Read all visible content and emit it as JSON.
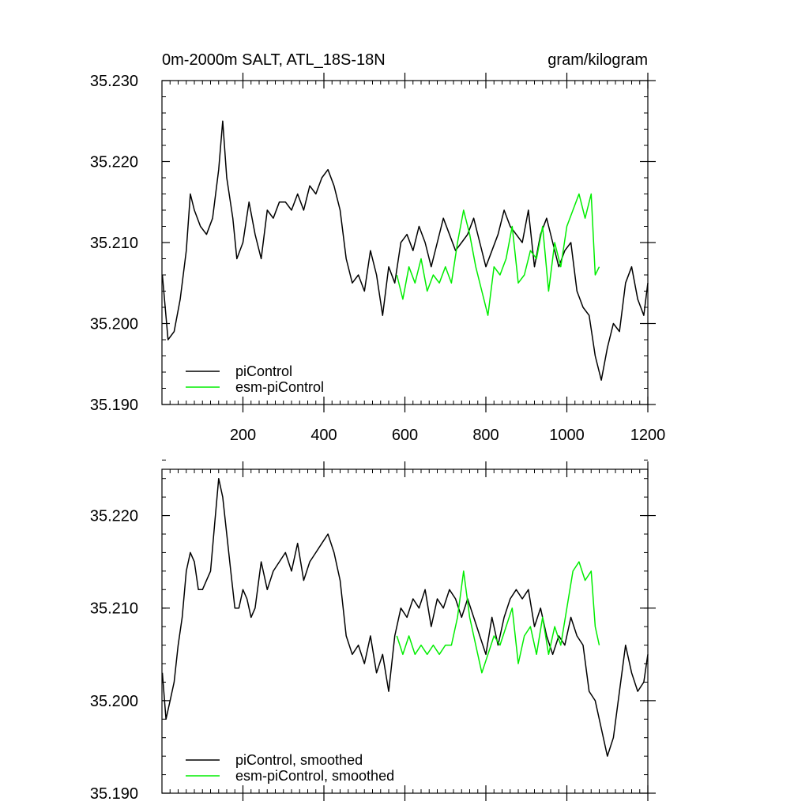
{
  "chart_data": [
    {
      "type": "line",
      "title_left": "0m-2000m SALT, ATL_18S-18N",
      "title_right": "gram/kilogram",
      "xlabel": "",
      "ylabel": "",
      "xlim": [
        0,
        1200
      ],
      "ylim": [
        35.19,
        35.23
      ],
      "x_ticks": [
        200,
        400,
        600,
        800,
        1000,
        1200
      ],
      "x_tick_labels": [
        "200",
        "400",
        "600",
        "800",
        "1000",
        "1200"
      ],
      "y_ticks": [
        35.19,
        35.2,
        35.21,
        35.22,
        35.23
      ],
      "y_tick_labels": [
        "35.190",
        "35.200",
        "35.210",
        "35.220",
        "35.230"
      ],
      "legend_position": "bottom-left",
      "series": [
        {
          "name": "piControl",
          "color": "#000000",
          "x": [
            1,
            15,
            30,
            45,
            60,
            70,
            80,
            95,
            110,
            125,
            140,
            150,
            160,
            175,
            185,
            200,
            215,
            230,
            245,
            260,
            275,
            290,
            305,
            320,
            335,
            350,
            365,
            380,
            395,
            410,
            425,
            440,
            455,
            470,
            485,
            500,
            515,
            530,
            545,
            560,
            575,
            590,
            605,
            620,
            635,
            650,
            665,
            680,
            695,
            710,
            725,
            740,
            755,
            770,
            785,
            800,
            815,
            830,
            845,
            860,
            875,
            890,
            905,
            920,
            935,
            950,
            965,
            980,
            995,
            1010,
            1025,
            1040,
            1055,
            1070,
            1085,
            1100,
            1115,
            1130,
            1145,
            1160,
            1175,
            1190,
            1200
          ],
          "y": [
            35.206,
            35.198,
            35.199,
            35.203,
            35.209,
            35.216,
            35.214,
            35.212,
            35.211,
            35.213,
            35.219,
            35.225,
            35.218,
            35.213,
            35.208,
            35.21,
            35.215,
            35.211,
            35.208,
            35.214,
            35.213,
            35.215,
            35.215,
            35.214,
            35.216,
            35.214,
            35.217,
            35.216,
            35.218,
            35.219,
            35.217,
            35.214,
            35.208,
            35.205,
            35.206,
            35.204,
            35.209,
            35.206,
            35.201,
            35.207,
            35.205,
            35.21,
            35.211,
            35.209,
            35.212,
            35.21,
            35.207,
            35.21,
            35.213,
            35.211,
            35.209,
            35.21,
            35.211,
            35.213,
            35.21,
            35.207,
            35.209,
            35.211,
            35.214,
            35.212,
            35.211,
            35.21,
            35.214,
            35.207,
            35.211,
            35.213,
            35.21,
            35.207,
            35.209,
            35.21,
            35.204,
            35.202,
            35.201,
            35.196,
            35.193,
            35.197,
            35.2,
            35.199,
            35.205,
            35.207,
            35.203,
            35.201,
            35.205
          ]
        },
        {
          "name": "esm-piControl",
          "color": "#00ee00",
          "x": [
            580,
            595,
            610,
            625,
            640,
            655,
            670,
            685,
            700,
            715,
            730,
            745,
            760,
            775,
            790,
            805,
            820,
            835,
            850,
            865,
            880,
            895,
            910,
            925,
            940,
            955,
            970,
            985,
            1000,
            1015,
            1030,
            1045,
            1060,
            1070,
            1080
          ],
          "y": [
            35.206,
            35.203,
            35.207,
            35.205,
            35.208,
            35.204,
            35.206,
            35.205,
            35.207,
            35.205,
            35.21,
            35.214,
            35.211,
            35.207,
            35.204,
            35.201,
            35.207,
            35.206,
            35.208,
            35.212,
            35.205,
            35.206,
            35.209,
            35.208,
            35.212,
            35.204,
            35.21,
            35.207,
            35.212,
            35.214,
            35.216,
            35.213,
            35.216,
            35.206,
            35.207
          ]
        }
      ]
    },
    {
      "type": "line",
      "xlabel": "",
      "ylabel": "",
      "xlim": [
        0,
        1200
      ],
      "ylim": [
        35.19,
        35.225
      ],
      "x_ticks": [
        200,
        400,
        600,
        800,
        1000,
        1200
      ],
      "y_ticks": [
        35.19,
        35.2,
        35.21,
        35.22
      ],
      "y_tick_labels": [
        "35.190",
        "35.200",
        "35.210",
        "35.220"
      ],
      "legend_position": "bottom-left",
      "series": [
        {
          "name": "piControl, smoothed",
          "color": "#000000",
          "x": [
            1,
            10,
            20,
            30,
            40,
            50,
            60,
            70,
            80,
            90,
            100,
            110,
            120,
            130,
            140,
            150,
            160,
            170,
            180,
            190,
            200,
            210,
            220,
            230,
            245,
            260,
            275,
            290,
            305,
            320,
            335,
            350,
            365,
            380,
            395,
            410,
            425,
            440,
            455,
            470,
            485,
            500,
            515,
            530,
            545,
            560,
            575,
            590,
            605,
            620,
            635,
            650,
            665,
            680,
            695,
            710,
            725,
            740,
            755,
            770,
            785,
            800,
            815,
            830,
            845,
            860,
            875,
            890,
            905,
            920,
            935,
            950,
            965,
            980,
            995,
            1010,
            1025,
            1040,
            1055,
            1070,
            1085,
            1100,
            1115,
            1130,
            1145,
            1160,
            1175,
            1190,
            1200
          ],
          "y": [
            35.203,
            35.198,
            35.2,
            35.202,
            35.206,
            35.209,
            35.214,
            35.216,
            35.215,
            35.212,
            35.212,
            35.213,
            35.214,
            35.219,
            35.224,
            35.222,
            35.218,
            35.214,
            35.21,
            35.21,
            35.212,
            35.211,
            35.209,
            35.21,
            35.215,
            35.212,
            35.214,
            35.215,
            35.216,
            35.214,
            35.217,
            35.213,
            35.215,
            35.216,
            35.217,
            35.218,
            35.216,
            35.213,
            35.207,
            35.205,
            35.206,
            35.204,
            35.207,
            35.203,
            35.205,
            35.201,
            35.207,
            35.21,
            35.209,
            35.211,
            35.21,
            35.212,
            35.208,
            35.211,
            35.21,
            35.212,
            35.211,
            35.209,
            35.211,
            35.209,
            35.207,
            35.205,
            35.209,
            35.206,
            35.209,
            35.211,
            35.212,
            35.211,
            35.212,
            35.208,
            35.21,
            35.207,
            35.205,
            35.207,
            35.206,
            35.209,
            35.207,
            35.206,
            35.201,
            35.2,
            35.197,
            35.194,
            35.196,
            35.201,
            35.206,
            35.203,
            35.201,
            35.202,
            35.205
          ]
        },
        {
          "name": "esm-piControl, smoothed",
          "color": "#00ee00",
          "x": [
            580,
            595,
            610,
            625,
            640,
            655,
            670,
            685,
            700,
            715,
            730,
            745,
            760,
            775,
            790,
            805,
            820,
            835,
            850,
            865,
            880,
            895,
            910,
            925,
            940,
            955,
            970,
            985,
            1000,
            1015,
            1030,
            1045,
            1060,
            1070,
            1080
          ],
          "y": [
            35.207,
            35.205,
            35.207,
            35.205,
            35.206,
            35.205,
            35.206,
            35.205,
            35.206,
            35.206,
            35.209,
            35.214,
            35.209,
            35.206,
            35.203,
            35.205,
            35.207,
            35.206,
            35.208,
            35.21,
            35.204,
            35.207,
            35.208,
            35.205,
            35.209,
            35.205,
            35.208,
            35.206,
            35.21,
            35.214,
            35.215,
            35.213,
            35.214,
            35.208,
            35.206
          ]
        }
      ]
    }
  ]
}
